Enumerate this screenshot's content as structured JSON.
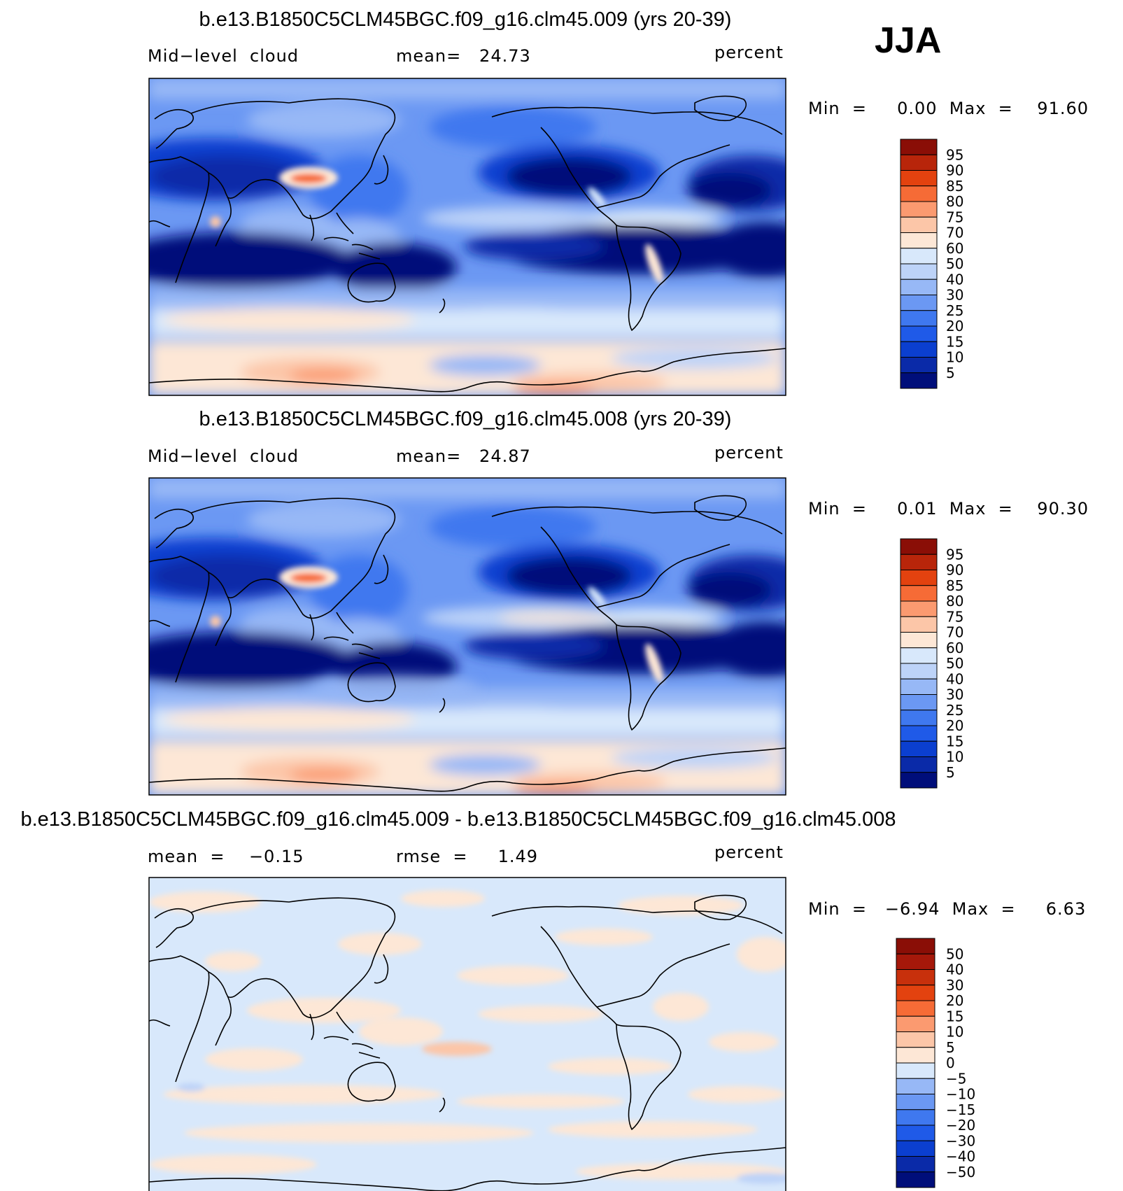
{
  "season": "JJA",
  "panels": [
    {
      "title": "b.e13.B1850C5CLM45BGC.f09_g16.clm45.009 (yrs 20-39)",
      "left_label": "Mid−level  cloud",
      "center_label": "mean=   24.73",
      "units": "percent",
      "minmax": "Min  =     0.00  Max  =    91.60"
    },
    {
      "title": "b.e13.B1850C5CLM45BGC.f09_g16.clm45.008 (yrs 20-39)",
      "left_label": "Mid−level  cloud",
      "center_label": "mean=   24.87",
      "units": "percent",
      "minmax": "Min  =     0.01  Max  =    90.30"
    },
    {
      "title": "b.e13.B1850C5CLM45BGC.f09_g16.clm45.009 - b.e13.B1850C5CLM45BGC.f09_g16.clm45.008",
      "left_label": "mean  =    −0.15",
      "center_label": "rmse  =     1.49",
      "units": "percent",
      "minmax": "Min  =   −6.94  Max  =     6.63"
    }
  ],
  "chart_data": [
    {
      "type": "heatmap",
      "variable": "Mid-level cloud",
      "units": "percent",
      "mean": 24.73,
      "min": 0.0,
      "max": 91.6,
      "colorbar_levels": [
        "5",
        "10",
        "15",
        "20",
        "25",
        "30",
        "40",
        "50",
        "60",
        "70",
        "75",
        "80",
        "85",
        "90",
        "95"
      ],
      "colors": [
        "#000e7a",
        "#0a2aa8",
        "#0b3fd0",
        "#1f5ae8",
        "#3f78ef",
        "#6b98f3",
        "#97b8f6",
        "#bdd3f8",
        "#d8e8fb",
        "#fde7d6",
        "#fcc6a8",
        "#fb9a70",
        "#f66b36",
        "#e3420f",
        "#b8250a",
        "#8a0e06"
      ]
    },
    {
      "type": "heatmap",
      "variable": "Mid-level cloud",
      "units": "percent",
      "mean": 24.87,
      "min": 0.01,
      "max": 90.3,
      "colorbar_levels": [
        "5",
        "10",
        "15",
        "20",
        "25",
        "30",
        "40",
        "50",
        "60",
        "70",
        "75",
        "80",
        "85",
        "90",
        "95"
      ],
      "colors": [
        "#000e7a",
        "#0a2aa8",
        "#0b3fd0",
        "#1f5ae8",
        "#3f78ef",
        "#6b98f3",
        "#97b8f6",
        "#bdd3f8",
        "#d8e8fb",
        "#fde7d6",
        "#fcc6a8",
        "#fb9a70",
        "#f66b36",
        "#e3420f",
        "#b8250a",
        "#8a0e06"
      ]
    },
    {
      "type": "heatmap",
      "variable": "difference",
      "units": "percent",
      "mean": -0.15,
      "rmse": 1.49,
      "min": -6.94,
      "max": 6.63,
      "colorbar_levels": [
        "−50",
        "−40",
        "−30",
        "−20",
        "−15",
        "−10",
        "−5",
        "0",
        "5",
        "10",
        "15",
        "20",
        "30",
        "40",
        "50"
      ],
      "colors": [
        "#000e7a",
        "#0a2aa8",
        "#0b3fd0",
        "#1f5ae8",
        "#3f78ef",
        "#6b98f3",
        "#97b8f6",
        "#d8e8fb",
        "#fde7d6",
        "#fcc6a8",
        "#fb9a70",
        "#f66b36",
        "#e3420f",
        "#c8300c",
        "#a5180a",
        "#8a0e06"
      ]
    }
  ]
}
